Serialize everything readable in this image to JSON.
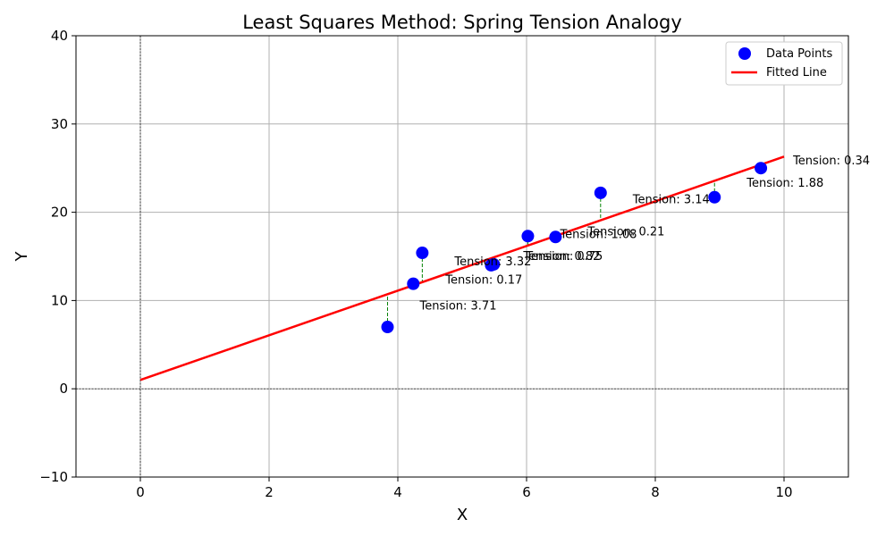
{
  "chart_data": {
    "type": "scatter",
    "title": "Least Squares Method: Spring Tension Analogy",
    "xlabel": "X",
    "ylabel": "Y",
    "xlim": [
      -1,
      11
    ],
    "ylim": [
      -10,
      40
    ],
    "xticks": [
      0,
      2,
      4,
      6,
      8,
      10
    ],
    "yticks": [
      -10,
      0,
      10,
      20,
      30,
      40
    ],
    "grid": true,
    "legend_position": "top-right",
    "colors": {
      "points": "#0000ff",
      "line": "#ff0000",
      "residual": "#008000",
      "grid": "#b0b0b0"
    },
    "series": [
      {
        "name": "Data Points",
        "kind": "scatter",
        "x": [
          3.84,
          4.24,
          4.38,
          5.45,
          6.02,
          6.45,
          7.15,
          8.92,
          9.64,
          5.49
        ],
        "y": [
          7.0,
          11.9,
          15.4,
          14.0,
          17.3,
          17.2,
          22.2,
          21.7,
          25.0,
          14.1
        ]
      },
      {
        "name": "Fitted Line",
        "kind": "line",
        "x": [
          0,
          10
        ],
        "y": [
          1.0,
          26.3
        ]
      }
    ],
    "annotations": [
      {
        "text": "Tension: 3.71",
        "x": 4.34,
        "y": 9.0
      },
      {
        "text": "Tension: 0.17",
        "x": 4.74,
        "y": 11.9
      },
      {
        "text": "Tension: 3.32",
        "x": 4.88,
        "y": 14.0
      },
      {
        "text": "Tension: 0.82",
        "x": 5.95,
        "y": 14.6
      },
      {
        "text": "Tension: 0.75",
        "x": 5.99,
        "y": 14.6
      },
      {
        "text": "Tension: 1.08",
        "x": 6.52,
        "y": 17.1
      },
      {
        "text": "Tension: 0.21",
        "x": 6.95,
        "y": 17.4
      },
      {
        "text": "Tension: 3.14",
        "x": 7.65,
        "y": 21.0
      },
      {
        "text": "Tension: 1.88",
        "x": 9.42,
        "y": 22.9
      },
      {
        "text": "Tension: 0.34",
        "x": 10.14,
        "y": 25.4
      }
    ]
  }
}
